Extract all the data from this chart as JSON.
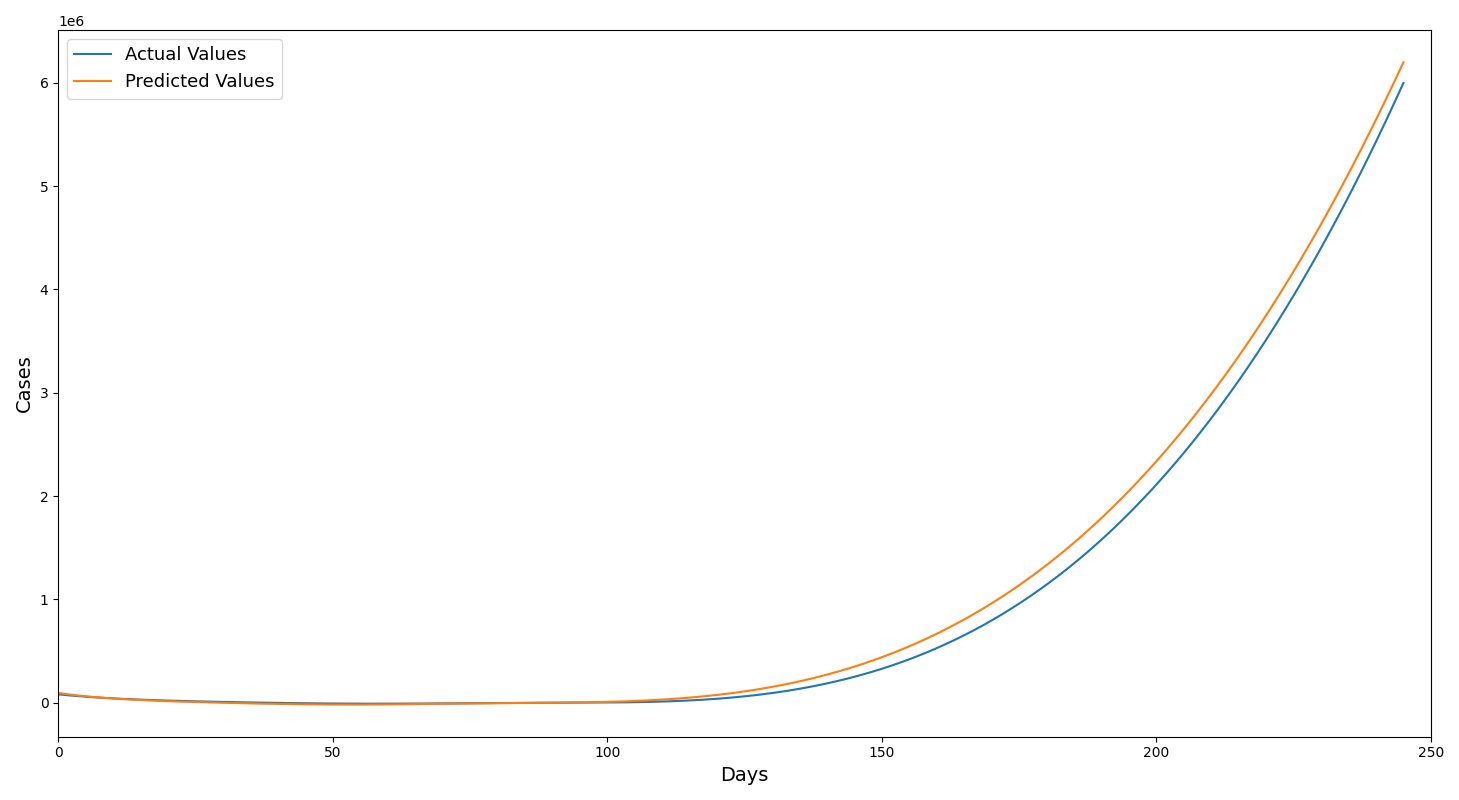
{
  "xlabel": "Days",
  "ylabel": "Cases",
  "xlim": [
    0,
    250
  ],
  "actual_color": "#1f77b4",
  "predicted_color": "#ff7f0e",
  "legend_labels": [
    "Actual Values",
    "Predicted Values"
  ],
  "figsize": [
    14.59,
    8.0
  ],
  "dpi": 100
}
